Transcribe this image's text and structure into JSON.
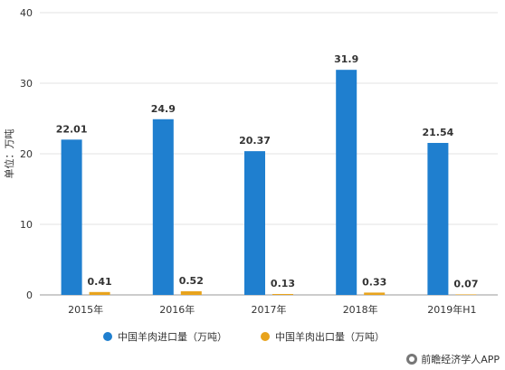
{
  "chart_data": {
    "type": "bar",
    "categories": [
      "2015年",
      "2016年",
      "2017年",
      "2018年",
      "2019年H1"
    ],
    "series": [
      {
        "name": "中国羊肉进口量（万吨）",
        "values": [
          22.01,
          24.9,
          20.37,
          31.9,
          21.54
        ],
        "labels": [
          "22.01",
          "24.9",
          "20.37",
          "31.9",
          "21.54"
        ],
        "color": "#1f7fcf"
      },
      {
        "name": "中国羊肉出口量（万吨）",
        "values": [
          0.41,
          0.52,
          0.13,
          0.33,
          0.07
        ],
        "labels": [
          "0.41",
          "0.52",
          "0.13",
          "0.33",
          "0.07"
        ],
        "color": "#e8a31c"
      }
    ],
    "ylabel": "单位：万吨",
    "xlabel": "",
    "ylim": [
      0,
      40
    ],
    "yticks": [
      0,
      10,
      20,
      30,
      40
    ],
    "grid": true,
    "legend_position": "bottom"
  },
  "footer": {
    "source": "前瞻经济学人APP"
  }
}
